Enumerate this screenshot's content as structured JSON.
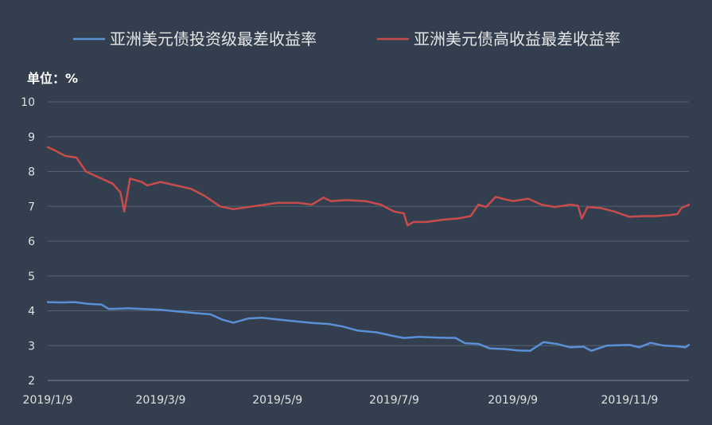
{
  "chart_data": {
    "type": "line",
    "unit_label": "单位：%",
    "legend_position": "top",
    "grid": true,
    "ylim": [
      2,
      10
    ],
    "y_ticks": [
      2,
      3,
      4,
      5,
      6,
      7,
      8,
      9,
      10
    ],
    "x_range": [
      "2019-01-09",
      "2019-12-10"
    ],
    "x_ticks": [
      {
        "date": "2019-01-09",
        "label": "2019/1/9"
      },
      {
        "date": "2019-03-09",
        "label": "2019/3/9"
      },
      {
        "date": "2019-05-09",
        "label": "2019/5/9"
      },
      {
        "date": "2019-07-09",
        "label": "2019/7/9"
      },
      {
        "date": "2019-09-09",
        "label": "2019/9/9"
      },
      {
        "date": "2019-11-09",
        "label": "2019/11/9"
      }
    ],
    "series": [
      {
        "name": "亚洲美元债投资级最差收益率",
        "color": "#5b8fd6",
        "points": [
          [
            "2019-01-09",
            4.25
          ],
          [
            "2019-01-16",
            4.24
          ],
          [
            "2019-01-23",
            4.25
          ],
          [
            "2019-01-30",
            4.2
          ],
          [
            "2019-02-06",
            4.18
          ],
          [
            "2019-02-10",
            4.05
          ],
          [
            "2019-02-20",
            4.07
          ],
          [
            "2019-02-28",
            4.05
          ],
          [
            "2019-03-09",
            4.03
          ],
          [
            "2019-03-18",
            3.98
          ],
          [
            "2019-03-28",
            3.93
          ],
          [
            "2019-04-04",
            3.9
          ],
          [
            "2019-04-10",
            3.75
          ],
          [
            "2019-04-16",
            3.66
          ],
          [
            "2019-04-24",
            3.78
          ],
          [
            "2019-05-01",
            3.8
          ],
          [
            "2019-05-09",
            3.75
          ],
          [
            "2019-05-18",
            3.7
          ],
          [
            "2019-05-27",
            3.65
          ],
          [
            "2019-06-05",
            3.62
          ],
          [
            "2019-06-12",
            3.55
          ],
          [
            "2019-06-20",
            3.43
          ],
          [
            "2019-06-30",
            3.38
          ],
          [
            "2019-07-09",
            3.27
          ],
          [
            "2019-07-14",
            3.22
          ],
          [
            "2019-07-22",
            3.25
          ],
          [
            "2019-08-01",
            3.23
          ],
          [
            "2019-08-10",
            3.22
          ],
          [
            "2019-08-15",
            3.07
          ],
          [
            "2019-08-22",
            3.05
          ],
          [
            "2019-08-28",
            2.92
          ],
          [
            "2019-09-05",
            2.9
          ],
          [
            "2019-09-12",
            2.86
          ],
          [
            "2019-09-18",
            2.85
          ],
          [
            "2019-09-25",
            3.1
          ],
          [
            "2019-10-02",
            3.05
          ],
          [
            "2019-10-09",
            2.95
          ],
          [
            "2019-10-16",
            2.97
          ],
          [
            "2019-10-20",
            2.85
          ],
          [
            "2019-10-28",
            3.0
          ],
          [
            "2019-11-09",
            3.02
          ],
          [
            "2019-11-14",
            2.95
          ],
          [
            "2019-11-20",
            3.08
          ],
          [
            "2019-11-27",
            3.0
          ],
          [
            "2019-12-04",
            2.98
          ],
          [
            "2019-12-08",
            2.95
          ],
          [
            "2019-12-10",
            3.02
          ]
        ]
      },
      {
        "name": "亚洲美元债高收益最差收益率",
        "color": "#c94b4b",
        "points": [
          [
            "2019-01-09",
            8.7
          ],
          [
            "2019-01-13",
            8.6
          ],
          [
            "2019-01-18",
            8.45
          ],
          [
            "2019-01-24",
            8.4
          ],
          [
            "2019-01-29",
            8.0
          ],
          [
            "2019-02-04",
            7.85
          ],
          [
            "2019-02-12",
            7.65
          ],
          [
            "2019-02-16",
            7.4
          ],
          [
            "2019-02-18",
            6.85
          ],
          [
            "2019-02-21",
            7.8
          ],
          [
            "2019-02-27",
            7.7
          ],
          [
            "2019-03-02",
            7.6
          ],
          [
            "2019-03-09",
            7.7
          ],
          [
            "2019-03-17",
            7.6
          ],
          [
            "2019-03-25",
            7.5
          ],
          [
            "2019-04-01",
            7.3
          ],
          [
            "2019-04-09",
            7.0
          ],
          [
            "2019-04-16",
            6.92
          ],
          [
            "2019-04-26",
            7.0
          ],
          [
            "2019-05-09",
            7.1
          ],
          [
            "2019-05-20",
            7.1
          ],
          [
            "2019-05-27",
            7.05
          ],
          [
            "2019-06-02",
            7.25
          ],
          [
            "2019-06-06",
            7.15
          ],
          [
            "2019-06-14",
            7.18
          ],
          [
            "2019-06-24",
            7.15
          ],
          [
            "2019-07-02",
            7.05
          ],
          [
            "2019-07-09",
            6.85
          ],
          [
            "2019-07-14",
            6.8
          ],
          [
            "2019-07-16",
            6.45
          ],
          [
            "2019-07-19",
            6.55
          ],
          [
            "2019-07-26",
            6.55
          ],
          [
            "2019-08-04",
            6.62
          ],
          [
            "2019-08-11",
            6.65
          ],
          [
            "2019-08-18",
            6.72
          ],
          [
            "2019-08-22",
            7.05
          ],
          [
            "2019-08-26",
            6.98
          ],
          [
            "2019-08-31",
            7.27
          ],
          [
            "2019-09-05",
            7.2
          ],
          [
            "2019-09-09",
            7.15
          ],
          [
            "2019-09-17",
            7.22
          ],
          [
            "2019-09-24",
            7.05
          ],
          [
            "2019-10-01",
            6.98
          ],
          [
            "2019-10-09",
            7.05
          ],
          [
            "2019-10-13",
            7.02
          ],
          [
            "2019-10-15",
            6.65
          ],
          [
            "2019-10-18",
            6.98
          ],
          [
            "2019-10-25",
            6.95
          ],
          [
            "2019-11-01",
            6.85
          ],
          [
            "2019-11-09",
            6.7
          ],
          [
            "2019-11-16",
            6.72
          ],
          [
            "2019-11-23",
            6.72
          ],
          [
            "2019-11-30",
            6.75
          ],
          [
            "2019-12-04",
            6.78
          ],
          [
            "2019-12-06",
            6.95
          ],
          [
            "2019-12-10",
            7.05
          ]
        ]
      }
    ]
  }
}
